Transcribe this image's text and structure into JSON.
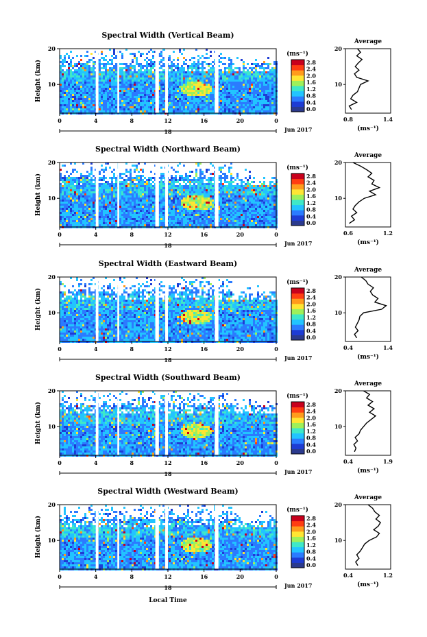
{
  "colorbar_ticks": [
    "2.8",
    "2.4",
    "2.0",
    "1.6",
    "1.2",
    "0.8",
    "0.4",
    "0.0"
  ],
  "colorbar_unit": "(ms⁻¹)",
  "colorbar_colors": [
    "#2b3a8e",
    "#1e3cd4",
    "#2b7bff",
    "#22c4ff",
    "#3fe8c8",
    "#9ef05a",
    "#ffe533",
    "#ff9b1c",
    "#ff3d12",
    "#c8001c"
  ],
  "y_label": "Height (km)",
  "y_ticks": [
    "20",
    "10"
  ],
  "time_ticks": [
    "0",
    "4",
    "8",
    "12",
    "16",
    "20",
    "0"
  ],
  "date_label": "18",
  "month_label": "Jun 2017",
  "x_label": "Local Time",
  "profile_title": "Average",
  "profile_xlabel": "(ms⁻¹)",
  "panels": [
    {
      "title": "Spectral Width (Vertical Beam)",
      "avg_ticks": [
        "0.8",
        "1.4"
      ]
    },
    {
      "title": "Spectral Width (Northward Beam)",
      "avg_ticks": [
        "0.6",
        "1.2"
      ]
    },
    {
      "title": "Spectral Width (Eastward Beam)",
      "avg_ticks": [
        "0.4",
        "1.4"
      ]
    },
    {
      "title": "Spectral Width (Southward Beam)",
      "avg_ticks": [
        "0.4",
        "1.9"
      ]
    },
    {
      "title": "Spectral Width (Westward Beam)",
      "avg_ticks": [
        "0.4",
        "1.2"
      ]
    }
  ],
  "chart_data": {
    "type": "heatmap",
    "x_axis": {
      "label": "Local Time",
      "range": [
        0,
        24
      ],
      "ticks": [
        0,
        4,
        8,
        12,
        16,
        20,
        24
      ]
    },
    "y_axis": {
      "label": "Height (km)",
      "range": [
        2,
        20
      ]
    },
    "colorbar": {
      "unit": "ms^-1",
      "range": [
        0.0,
        2.8
      ]
    },
    "data_gaps_hours": [
      [
        4.0,
        4.3
      ],
      [
        6.4,
        6.6
      ],
      [
        10.6,
        11.0
      ],
      [
        11.7,
        12.0
      ],
      [
        17.2,
        17.6
      ]
    ],
    "profiles": [
      {
        "beam": "Vertical",
        "xlim": [
          0.8,
          1.4
        ],
        "height": [
          3,
          4,
          5,
          6,
          7,
          8,
          9,
          10,
          11,
          12,
          13,
          14,
          15,
          16,
          17,
          18,
          19,
          20
        ],
        "width": [
          0.88,
          0.85,
          0.95,
          0.87,
          0.9,
          0.96,
          0.98,
          1.0,
          1.1,
          0.95,
          0.92,
          0.98,
          0.93,
          0.97,
          1.02,
          0.95,
          1.0,
          0.96
        ]
      },
      {
        "beam": "Northward",
        "xlim": [
          0.6,
          1.2
        ],
        "height": [
          3,
          4,
          5,
          6,
          7,
          8,
          9,
          10,
          11,
          12,
          13,
          14,
          15,
          16,
          17,
          18,
          19,
          20
        ],
        "width": [
          0.65,
          0.72,
          0.68,
          0.75,
          0.7,
          0.73,
          0.78,
          0.85,
          1.0,
          0.92,
          1.05,
          0.95,
          0.98,
          0.9,
          0.95,
          0.88,
          0.8,
          0.7
        ]
      },
      {
        "beam": "Eastward",
        "xlim": [
          0.4,
          1.4
        ],
        "height": [
          3,
          4,
          5,
          6,
          7,
          8,
          9,
          10,
          11,
          12,
          13,
          14,
          15,
          16,
          17,
          18,
          19,
          20
        ],
        "width": [
          0.65,
          0.6,
          0.68,
          0.62,
          0.66,
          0.7,
          0.72,
          0.8,
          1.2,
          1.3,
          1.05,
          1.12,
          1.0,
          0.95,
          1.02,
          0.9,
          0.85,
          0.75
        ]
      },
      {
        "beam": "Southward",
        "xlim": [
          0.4,
          1.9
        ],
        "height": [
          3,
          4,
          5,
          6,
          7,
          8,
          9,
          10,
          11,
          12,
          13,
          14,
          15,
          16,
          17,
          18,
          19,
          20
        ],
        "width": [
          0.7,
          0.75,
          0.68,
          0.8,
          0.72,
          0.85,
          0.9,
          1.0,
          1.1,
          1.25,
          1.4,
          1.2,
          1.35,
          1.15,
          1.3,
          1.1,
          1.2,
          1.0
        ]
      },
      {
        "beam": "Westward",
        "xlim": [
          0.4,
          1.2
        ],
        "height": [
          3,
          4,
          5,
          6,
          7,
          8,
          9,
          10,
          11,
          12,
          13,
          14,
          15,
          16,
          17,
          18,
          19,
          20
        ],
        "width": [
          0.62,
          0.58,
          0.64,
          0.6,
          0.66,
          0.7,
          0.74,
          0.82,
          0.95,
          1.0,
          0.9,
          0.98,
          1.02,
          0.94,
          1.0,
          0.92,
          0.88,
          0.8
        ]
      }
    ]
  }
}
